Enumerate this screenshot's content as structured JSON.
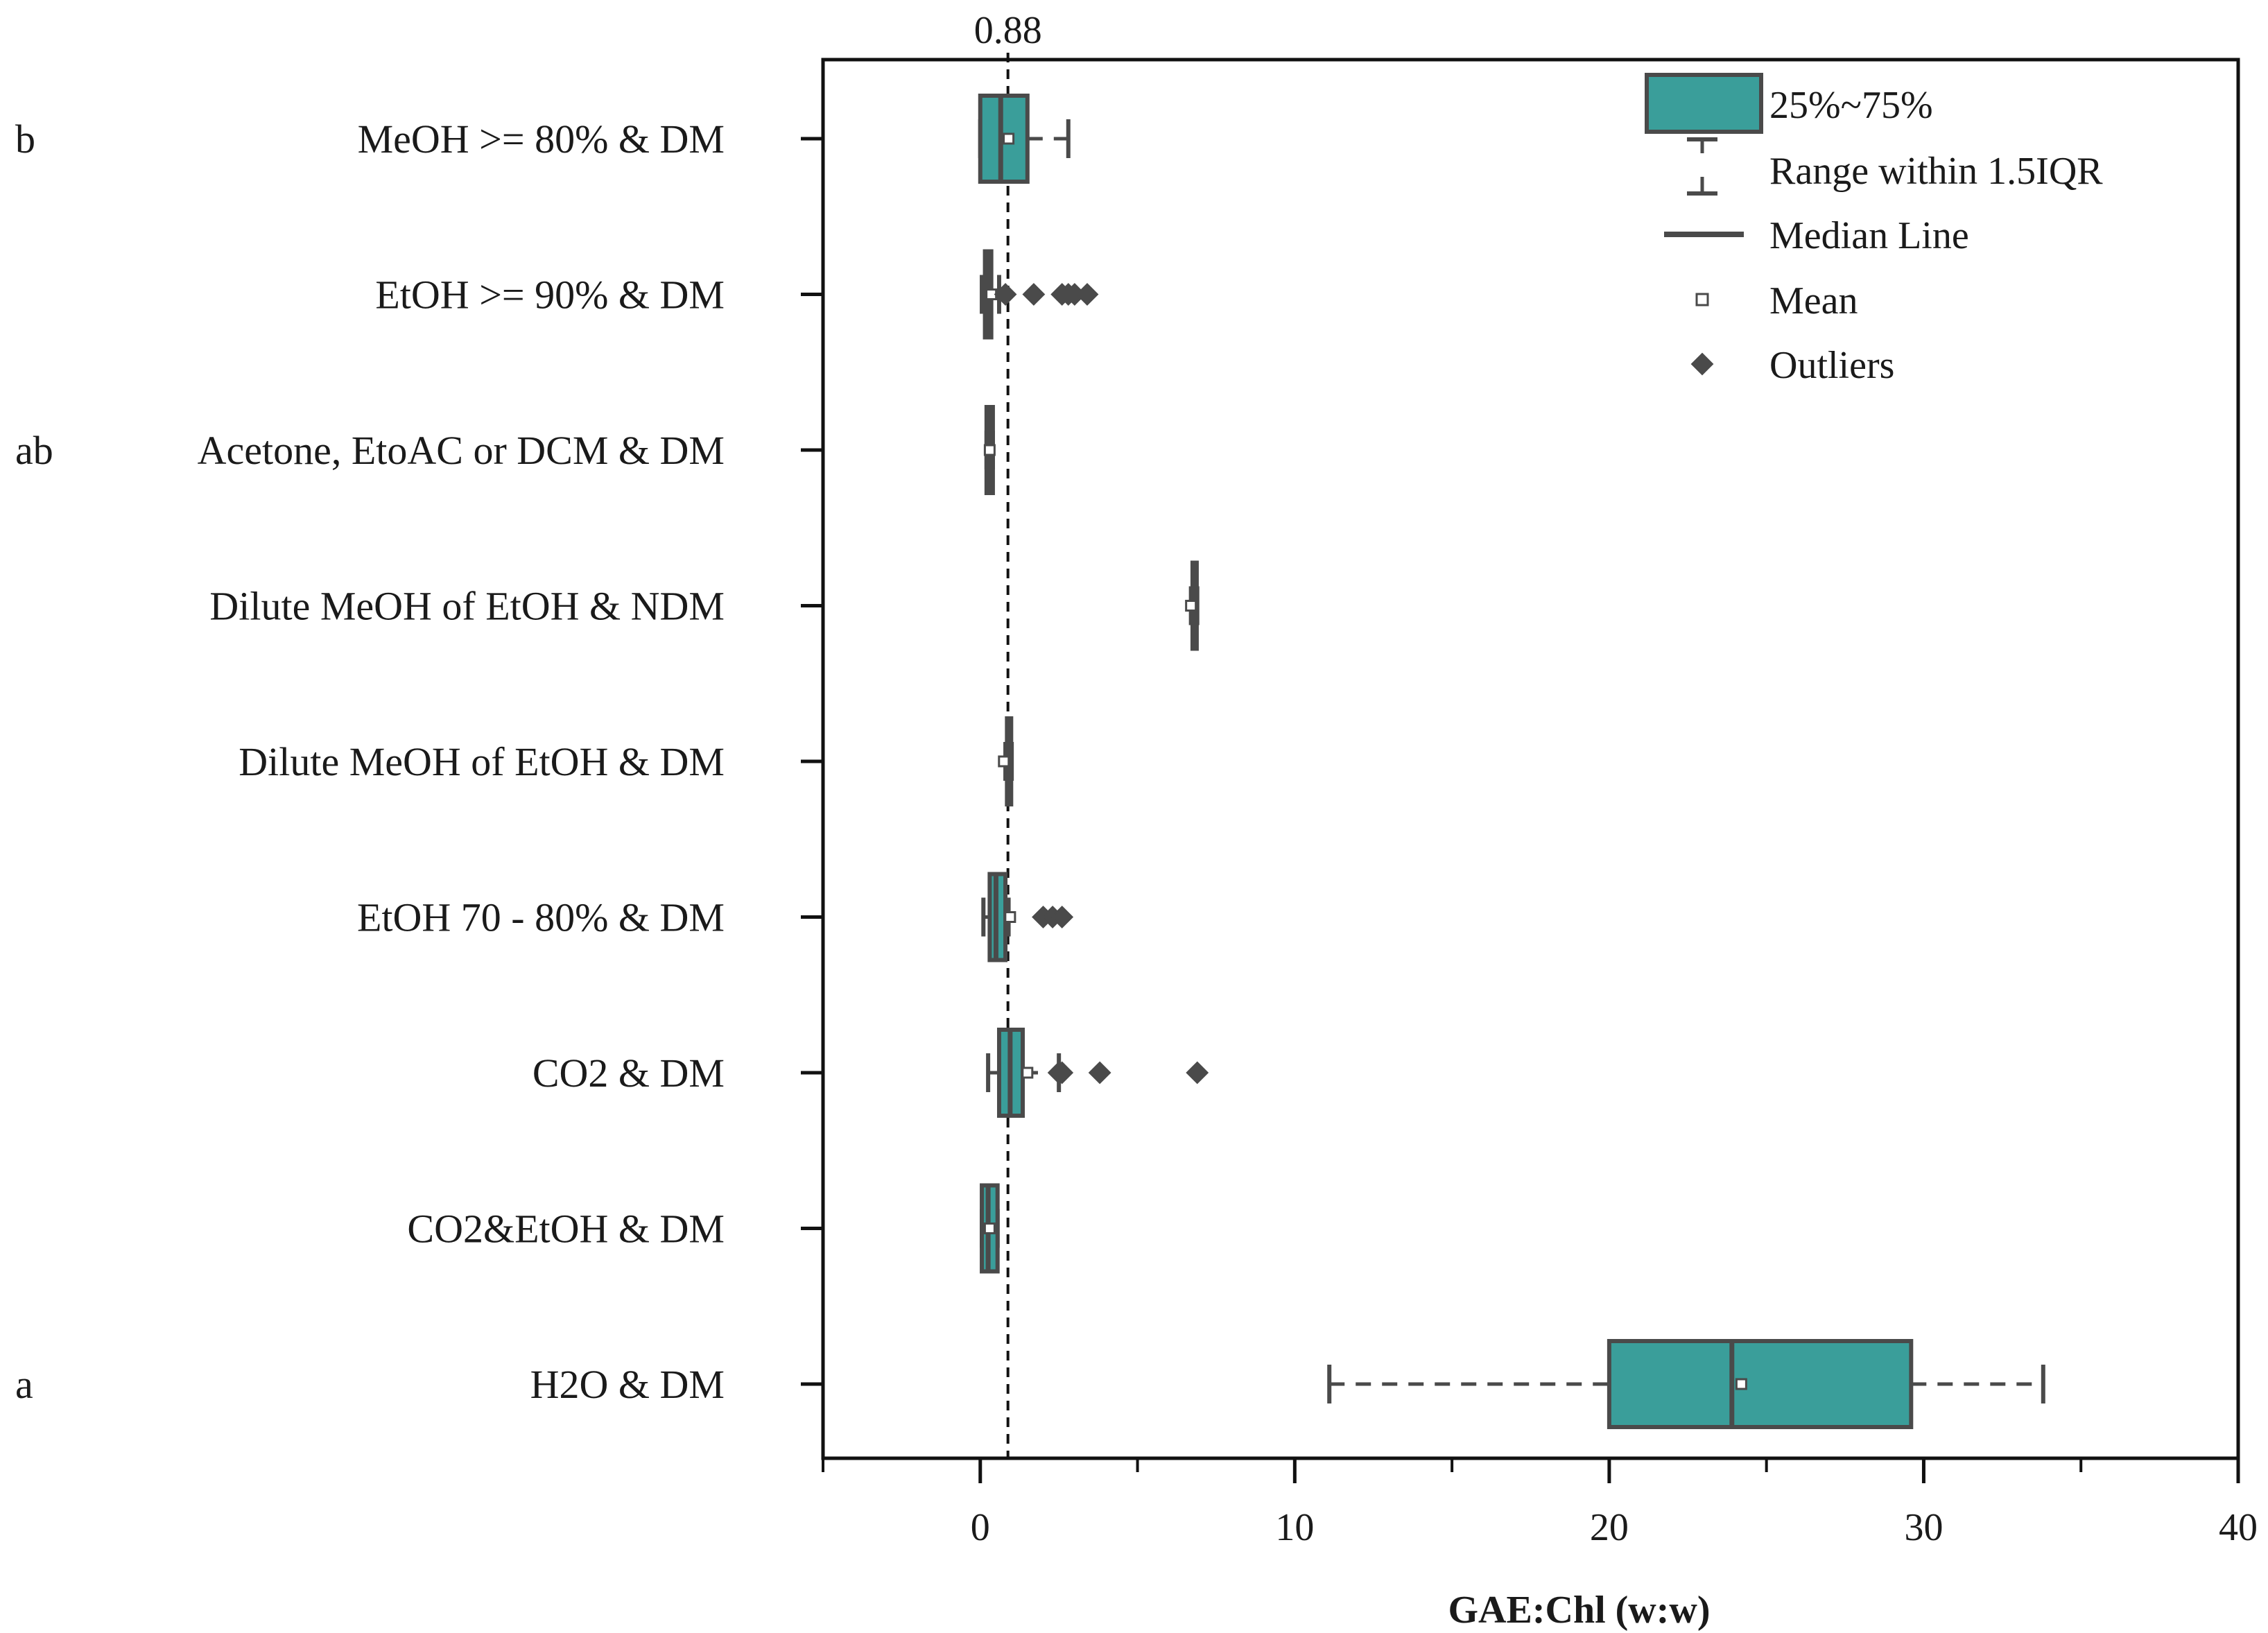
{
  "chart_data": {
    "type": "boxplot",
    "orientation": "horizontal",
    "xlabel": "GAE:Chl (w:w)",
    "xlim": [
      -5,
      40
    ],
    "xticks": [
      0,
      10,
      20,
      30,
      40
    ],
    "x_tick_labels": [
      "0",
      "10",
      "20",
      "30",
      "40"
    ],
    "reference_line": {
      "value": 0.88,
      "label": "0.88"
    },
    "colors": {
      "box_fill": "#3a9e9a",
      "stroke": "#4a4a4a"
    },
    "categories": [
      {
        "label": "MeOH >= 80% & DM",
        "letter": "b",
        "q1": 0.0,
        "median": 0.65,
        "q3": 1.5,
        "whisker_low": 0.0,
        "whisker_high": 2.8,
        "mean": 0.9,
        "outliers": []
      },
      {
        "label": "EtOH >= 90% & DM",
        "letter": "",
        "q1": 0.15,
        "median": 0.25,
        "q3": 0.35,
        "whisker_low": 0.05,
        "whisker_high": 0.6,
        "mean": 0.35,
        "outliers": [
          0.8,
          1.7,
          2.6,
          2.8,
          3.0,
          3.4
        ]
      },
      {
        "label": "Acetone, EtoAC or DCM & DM",
        "letter": "ab",
        "q1": 0.2,
        "median": 0.3,
        "q3": 0.4,
        "whisker_low": 0.2,
        "whisker_high": 0.4,
        "mean": 0.3,
        "outliers": []
      },
      {
        "label": "Dilute MeOH of EtOH & NDM",
        "letter": "",
        "q1": 6.75,
        "median": 6.8,
        "q3": 6.85,
        "whisker_low": 6.7,
        "whisker_high": 6.9,
        "mean": 6.7,
        "outliers": []
      },
      {
        "label": "Dilute MeOH of EtOH & DM",
        "letter": "",
        "q1": 0.85,
        "median": 0.9,
        "q3": 0.95,
        "whisker_low": 0.8,
        "whisker_high": 1.0,
        "mean": 0.75,
        "outliers": []
      },
      {
        "label": "EtOH 70 - 80% & DM",
        "letter": "",
        "q1": 0.3,
        "median": 0.5,
        "q3": 0.8,
        "whisker_low": 0.1,
        "whisker_high": 0.9,
        "mean": 0.95,
        "outliers": [
          2.0,
          2.3,
          2.6
        ]
      },
      {
        "label": "CO2 & DM",
        "letter": "",
        "q1": 0.6,
        "median": 0.95,
        "q3": 1.35,
        "whisker_low": 0.25,
        "whisker_high": 2.5,
        "mean": 1.5,
        "outliers": [
          2.5,
          2.6,
          3.8,
          6.9
        ]
      },
      {
        "label": "CO2&EtOH & DM",
        "letter": "",
        "q1": 0.05,
        "median": 0.25,
        "q3": 0.55,
        "whisker_low": 0.05,
        "whisker_high": 0.55,
        "mean": 0.3,
        "outliers": []
      },
      {
        "label": "H2O & DM",
        "letter": "a",
        "q1": 20.0,
        "median": 23.9,
        "q3": 29.6,
        "whisker_low": 11.1,
        "whisker_high": 33.8,
        "mean": 24.2,
        "outliers": []
      }
    ],
    "legend": {
      "position": "top-right",
      "items": [
        {
          "kind": "box",
          "label": "25%~75%"
        },
        {
          "kind": "range",
          "label": "Range within 1.5IQR"
        },
        {
          "kind": "median",
          "label": "Median Line"
        },
        {
          "kind": "mean",
          "label": "Mean"
        },
        {
          "kind": "outlier",
          "label": "Outliers"
        }
      ]
    }
  }
}
